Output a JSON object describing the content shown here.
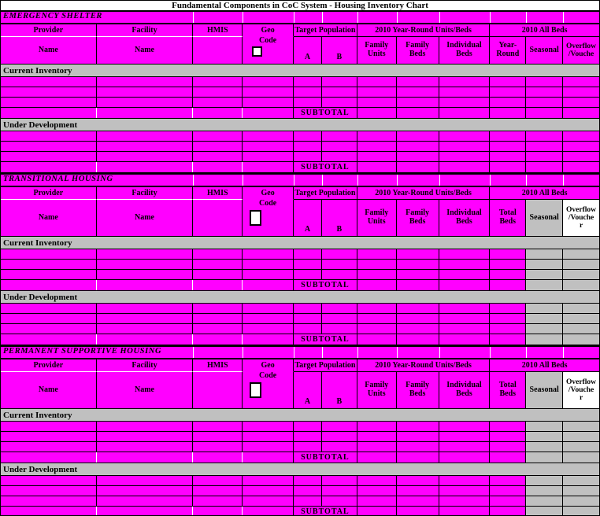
{
  "title": "Fundamental Components in CoC System - Housing Inventory Chart",
  "colors": {
    "cell_magenta": "#ff00ff",
    "bar_gray": "#c0c0c0",
    "header_white": "#ffffff",
    "grid_black": "#000000"
  },
  "labels": {
    "current_inventory": "Current Inventory",
    "under_development": "Under Development",
    "subtotal": "SUBTOTAL"
  },
  "columns": {
    "provider": "Provider",
    "facility": "Facility",
    "hmis": "HMIS",
    "geo": "Geo",
    "code": "Code",
    "name": "Name",
    "target_population": "Target Population",
    "year_round_units_beds": "2010 Year-Round Units/Beds",
    "all_beds": "2010 All Beds",
    "a": "A",
    "b": "B",
    "family_units": "Family\nUnits",
    "family_beds": "Family\nBeds",
    "individual_beds": "Individual\nBeds",
    "seasonal": "Seasonal"
  },
  "sections": [
    {
      "title": "EMERGENCY SHELTER",
      "total_beds_label": "Year-\nRound",
      "overflow_label": "Overflow\n/Vouche"
    },
    {
      "title": "TRANSITIONAL HOUSING",
      "total_beds_label": "Total\nBeds",
      "overflow_label": "Overflow\n/Vouche\nr"
    },
    {
      "title": "PERMANENT SUPPORTIVE HOUSING",
      "total_beds_label": "Total\nBeds",
      "overflow_label": "Overflow\n/Vouche\nr"
    }
  ]
}
